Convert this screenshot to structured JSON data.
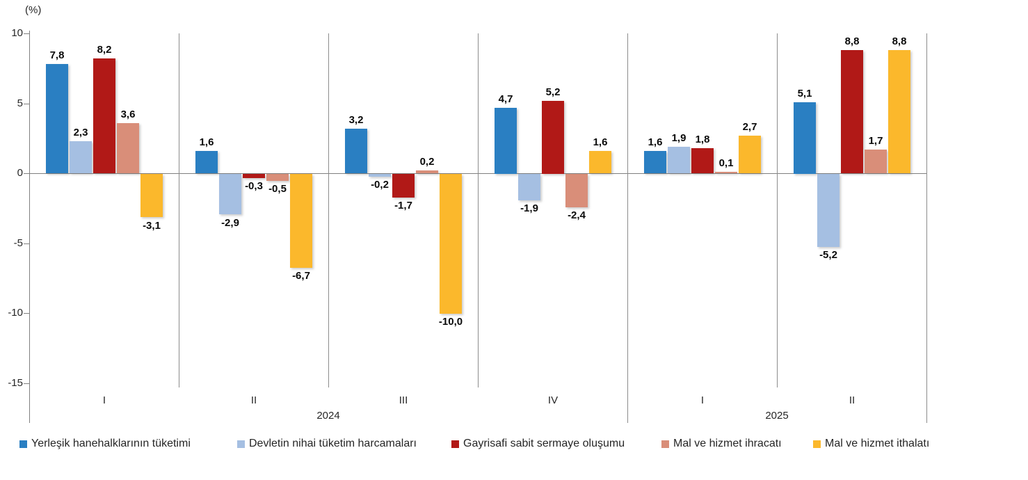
{
  "chart_data": {
    "type": "bar",
    "title": "",
    "ylabel": "(%)",
    "xlabel": "",
    "ylim": [
      -15,
      10
    ],
    "yticks": [
      10,
      5,
      0,
      -5,
      -10,
      -15
    ],
    "grid": "vertical-group-separators-only",
    "legend_position": "bottom",
    "decimal_separator": ",",
    "value_label_format": "one-decimal",
    "groups": [
      {
        "year": "2024",
        "quarters": [
          "I",
          "II",
          "III",
          "IV"
        ]
      },
      {
        "year": "2025",
        "quarters": [
          "I",
          "II"
        ]
      }
    ],
    "categories": [
      "2024-I",
      "2024-II",
      "2024-III",
      "2024-IV",
      "2025-I",
      "2025-II"
    ],
    "series": [
      {
        "name": "Yerleşik hanehalklarının tüketimi",
        "color": "#2A7FC2",
        "values": [
          7.8,
          1.6,
          3.2,
          4.7,
          1.6,
          5.1
        ]
      },
      {
        "name": "Devletin nihai tüketim harcamaları",
        "color": "#A5BFE2",
        "values": [
          2.3,
          -2.9,
          -0.2,
          -1.9,
          1.9,
          -5.2
        ]
      },
      {
        "name": "Gayrisafi sabit sermaye oluşumu",
        "color": "#B11917",
        "values": [
          8.2,
          -0.3,
          -1.7,
          5.2,
          1.8,
          8.8
        ]
      },
      {
        "name": "Mal ve hizmet ihracatı",
        "color": "#D98E79",
        "values": [
          3.6,
          -0.5,
          0.2,
          -2.4,
          0.1,
          1.7
        ]
      },
      {
        "name": "Mal ve hizmet ithalatı",
        "color": "#FBB82C",
        "values": [
          -3.1,
          -6.7,
          -10.0,
          1.6,
          2.7,
          8.8
        ]
      }
    ]
  },
  "style_colors": {
    "axis_gray": "#808080",
    "separator_gray": "#8c8c8c",
    "text": "#262626",
    "data_label": "#0a0a0a",
    "background": "#ffffff"
  }
}
